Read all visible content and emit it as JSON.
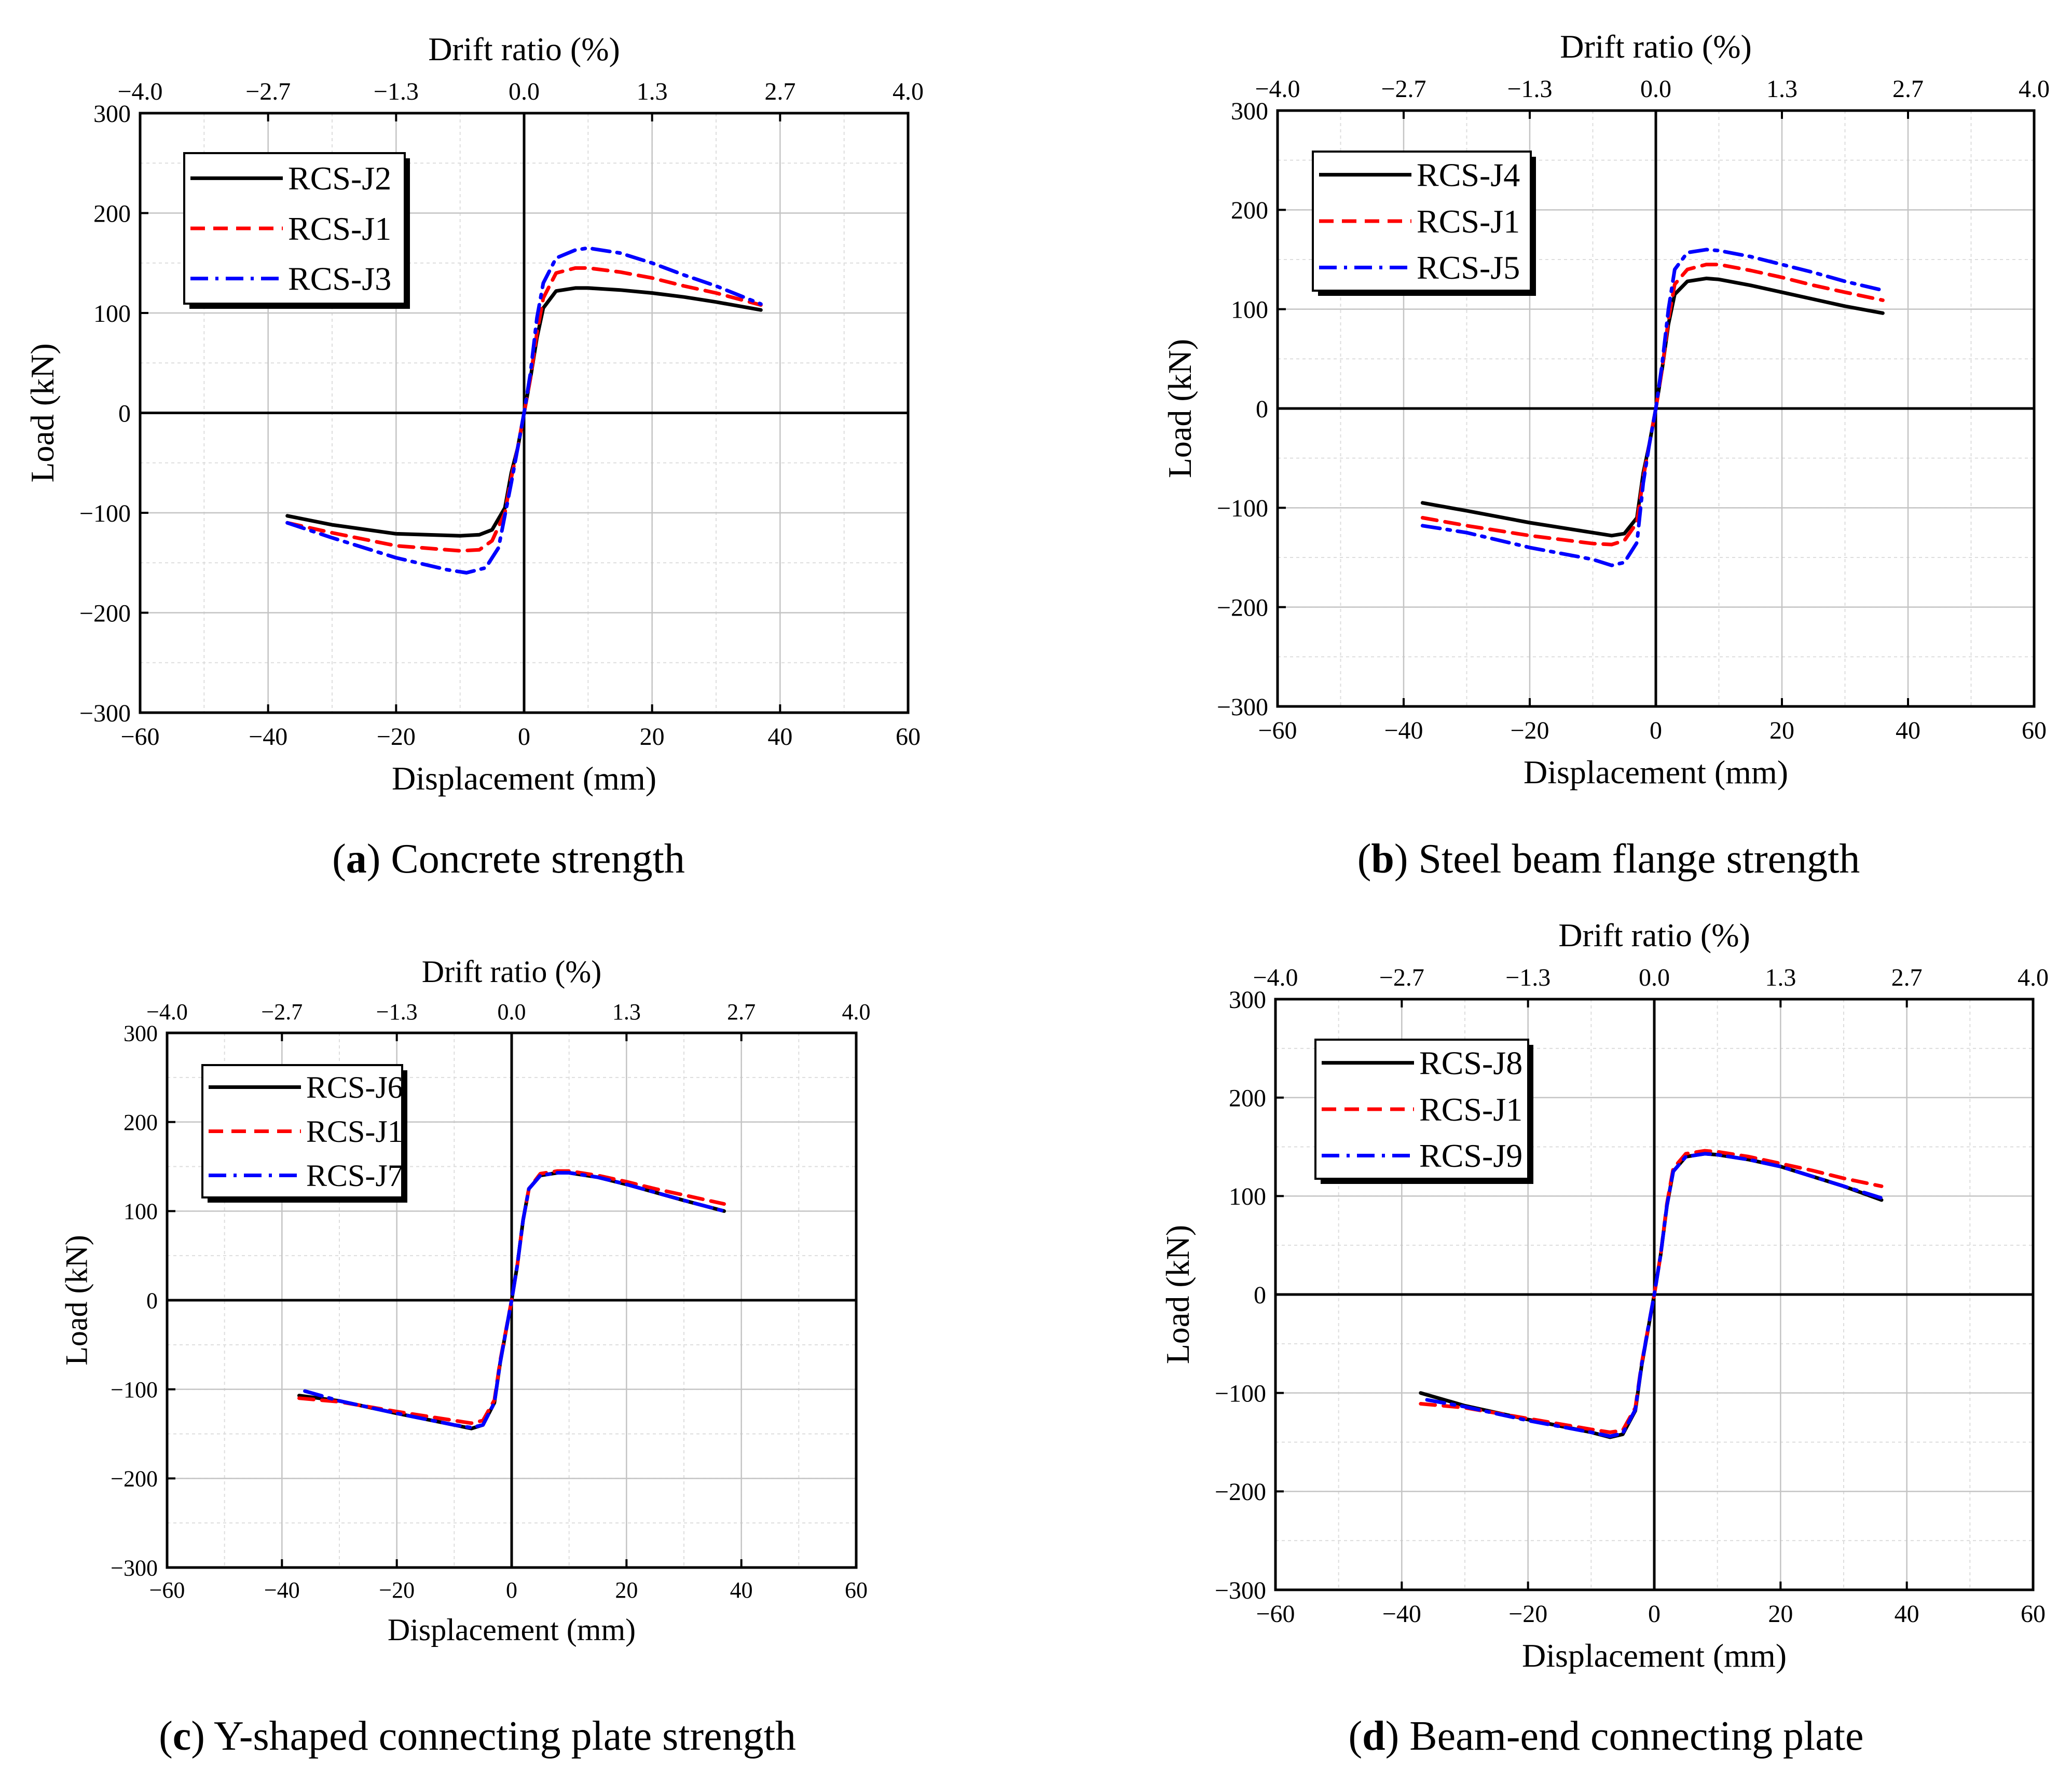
{
  "figure": {
    "panels": [
      {
        "id": "a",
        "caption": {
          "letter": "a",
          "text": " Concrete strength"
        },
        "top_axis_label": "Drift ratio (%)",
        "chart_data": {
          "type": "line",
          "xlabel": "Displacement (mm)",
          "ylabel": "Load (kN)",
          "x2label": "Drift ratio (%)",
          "xlim": [
            -60,
            60
          ],
          "ylim": [
            -300,
            300
          ],
          "xticks": [
            "−60",
            "−40",
            "−20",
            "0",
            "20",
            "40",
            "60"
          ],
          "xtick_values": [
            -60,
            -40,
            -20,
            0,
            20,
            40,
            60
          ],
          "yticks": [
            "−300",
            "−200",
            "−100",
            "0",
            "100",
            "200",
            "300"
          ],
          "ytick_values": [
            -300,
            -200,
            -100,
            0,
            100,
            200,
            300
          ],
          "x2ticks": [
            "−4.0",
            "−2.7",
            "−1.3",
            "0.0",
            "1.3",
            "2.7",
            "4.0"
          ],
          "grid": true,
          "legend_position": "top-left",
          "series": [
            {
              "name": "RCS-J2",
              "color": "#000000",
              "style": "solid",
              "x": [
                -37,
                -30,
                -20,
                -10,
                -7,
                -5,
                -3,
                -2,
                -1,
                0,
                1,
                2,
                3,
                5,
                8,
                10,
                15,
                20,
                25,
                30,
                37
              ],
              "y": [
                -103,
                -112,
                -121,
                -123,
                -122,
                -117,
                -95,
                -60,
                -35,
                0,
                35,
                75,
                105,
                122,
                125,
                125,
                123,
                120,
                116,
                111,
                103
              ]
            },
            {
              "name": "RCS-J1",
              "color": "#ff0000",
              "style": "dashed",
              "x": [
                -37,
                -30,
                -20,
                -10,
                -7,
                -5,
                -3,
                -2,
                -1,
                0,
                1,
                2,
                3,
                5,
                8,
                10,
                15,
                20,
                25,
                30,
                37
              ],
              "y": [
                -110,
                -120,
                -133,
                -138,
                -137,
                -128,
                -100,
                -65,
                -35,
                0,
                35,
                80,
                115,
                140,
                145,
                145,
                141,
                135,
                127,
                120,
                108
              ]
            },
            {
              "name": "RCS-J3",
              "color": "#0000ff",
              "style": "dashdot",
              "x": [
                -37,
                -30,
                -20,
                -12,
                -9,
                -6,
                -4,
                -2,
                -1,
                0,
                1,
                2,
                3,
                5,
                8,
                10,
                15,
                20,
                25,
                30,
                37
              ],
              "y": [
                -110,
                -125,
                -145,
                -157,
                -160,
                -155,
                -135,
                -70,
                -35,
                0,
                40,
                95,
                130,
                155,
                163,
                165,
                160,
                150,
                138,
                127,
                109
              ]
            }
          ]
        }
      },
      {
        "id": "b",
        "caption": {
          "letter": "b",
          "text": " Steel beam flange strength"
        },
        "top_axis_label": "Drift ratio (%)",
        "chart_data": {
          "type": "line",
          "xlabel": "Displacement (mm)",
          "ylabel": "Load (kN)",
          "x2label": "Drift ratio (%)",
          "xlim": [
            -60,
            60
          ],
          "ylim": [
            -300,
            300
          ],
          "xticks": [
            "−60",
            "−40",
            "−20",
            "0",
            "20",
            "40",
            "60"
          ],
          "xtick_values": [
            -60,
            -40,
            -20,
            0,
            20,
            40,
            60
          ],
          "yticks": [
            "−300",
            "−200",
            "−100",
            "0",
            "100",
            "200",
            "300"
          ],
          "ytick_values": [
            -300,
            -200,
            -100,
            0,
            100,
            200,
            300
          ],
          "x2ticks": [
            "−4.0",
            "−2.7",
            "−1.3",
            "0.0",
            "1.3",
            "2.7",
            "4.0"
          ],
          "grid": true,
          "legend_position": "top-left",
          "series": [
            {
              "name": "RCS-J4",
              "color": "#000000",
              "style": "solid",
              "x": [
                -37,
                -30,
                -20,
                -10,
                -7,
                -5,
                -3,
                -2,
                -1,
                0,
                1,
                2,
                3,
                5,
                8,
                10,
                15,
                20,
                25,
                30,
                36
              ],
              "y": [
                -95,
                -103,
                -115,
                -125,
                -128,
                -126,
                -110,
                -65,
                -35,
                0,
                40,
                85,
                115,
                128,
                131,
                130,
                124,
                117,
                110,
                103,
                96
              ]
            },
            {
              "name": "RCS-J1",
              "color": "#ff0000",
              "style": "dashed",
              "x": [
                -37,
                -30,
                -20,
                -10,
                -7,
                -5,
                -3,
                -2,
                -1,
                0,
                1,
                2,
                3,
                5,
                8,
                10,
                15,
                20,
                25,
                30,
                36
              ],
              "y": [
                -110,
                -118,
                -128,
                -136,
                -137,
                -133,
                -115,
                -70,
                -35,
                0,
                40,
                90,
                125,
                140,
                145,
                145,
                139,
                132,
                124,
                117,
                109
              ]
            },
            {
              "name": "RCS-J5",
              "color": "#0000ff",
              "style": "dashdot",
              "x": [
                -37,
                -30,
                -20,
                -10,
                -7,
                -5,
                -3,
                -2,
                -1,
                0,
                1,
                2,
                3,
                5,
                8,
                10,
                15,
                20,
                25,
                30,
                36
              ],
              "y": [
                -118,
                -125,
                -140,
                -152,
                -158,
                -155,
                -135,
                -75,
                -35,
                0,
                45,
                100,
                140,
                157,
                160,
                159,
                153,
                145,
                137,
                128,
                119
              ]
            }
          ]
        }
      },
      {
        "id": "c",
        "caption": {
          "letter": "c",
          "text": " Y-shaped connecting plate strength"
        },
        "top_axis_label": "Drift ratio (%)",
        "chart_data": {
          "type": "line",
          "xlabel": "Displacement (mm)",
          "ylabel": "Load (kN)",
          "x2label": "Drift ratio (%)",
          "xlim": [
            -60,
            60
          ],
          "ylim": [
            -300,
            300
          ],
          "xticks": [
            "−60",
            "−40",
            "−20",
            "0",
            "20",
            "40",
            "60"
          ],
          "xtick_values": [
            -60,
            -40,
            -20,
            0,
            20,
            40,
            60
          ],
          "yticks": [
            "−300",
            "−200",
            "−100",
            "0",
            "100",
            "200",
            "300"
          ],
          "ytick_values": [
            -300,
            -200,
            -100,
            0,
            100,
            200,
            300
          ],
          "x2ticks": [
            "−4.0",
            "−2.7",
            "−1.3",
            "0.0",
            "1.3",
            "2.7",
            "4.0"
          ],
          "grid": true,
          "legend_position": "top-left",
          "series": [
            {
              "name": "RCS-J6",
              "color": "#000000",
              "style": "solid",
              "x": [
                -37,
                -30,
                -20,
                -10,
                -7,
                -5,
                -3,
                -2,
                -1,
                0,
                1,
                2,
                3,
                5,
                8,
                10,
                15,
                20,
                25,
                30,
                37
              ],
              "y": [
                -107,
                -113,
                -127,
                -140,
                -144,
                -140,
                -115,
                -70,
                -35,
                0,
                40,
                90,
                125,
                140,
                143,
                143,
                138,
                130,
                121,
                112,
                100
              ]
            },
            {
              "name": "RCS-J1",
              "color": "#ff0000",
              "style": "dashed",
              "x": [
                -37,
                -30,
                -20,
                -10,
                -7,
                -5,
                -3,
                -2,
                -1,
                0,
                1,
                2,
                3,
                5,
                8,
                10,
                15,
                20,
                25,
                30,
                37
              ],
              "y": [
                -110,
                -114,
                -125,
                -135,
                -138,
                -135,
                -112,
                -68,
                -34,
                0,
                40,
                90,
                125,
                142,
                145,
                145,
                140,
                133,
                125,
                118,
                108
              ]
            },
            {
              "name": "RCS-J7",
              "color": "#0000ff",
              "style": "dashdot",
              "x": [
                -36,
                -30,
                -20,
                -10,
                -7,
                -5,
                -3,
                -2,
                -1,
                0,
                1,
                2,
                3,
                5,
                8,
                10,
                15,
                20,
                25,
                30,
                37
              ],
              "y": [
                -102,
                -113,
                -127,
                -140,
                -143,
                -140,
                -115,
                -70,
                -35,
                0,
                40,
                90,
                125,
                140,
                143,
                143,
                138,
                130,
                121,
                112,
                100
              ]
            }
          ]
        }
      },
      {
        "id": "d",
        "caption": {
          "letter": "d",
          "text": " Beam-end connecting plate"
        },
        "top_axis_label": "Drift ratio (%)",
        "chart_data": {
          "type": "line",
          "xlabel": "Displacement (mm)",
          "ylabel": "Load (kN)",
          "x2label": "Drift ratio (%)",
          "xlim": [
            -60,
            60
          ],
          "ylim": [
            -300,
            300
          ],
          "xticks": [
            "−60",
            "−40",
            "−20",
            "0",
            "20",
            "40",
            "60"
          ],
          "xtick_values": [
            -60,
            -40,
            -20,
            0,
            20,
            40,
            60
          ],
          "yticks": [
            "−300",
            "−200",
            "−100",
            "0",
            "100",
            "200",
            "300"
          ],
          "ytick_values": [
            -300,
            -200,
            -100,
            0,
            100,
            200,
            300
          ],
          "x2ticks": [
            "−4.0",
            "−2.7",
            "−1.3",
            "0.0",
            "1.3",
            "2.7",
            "4.0"
          ],
          "grid": true,
          "legend_position": "top-left",
          "series": [
            {
              "name": "RCS-J8",
              "color": "#000000",
              "style": "solid",
              "x": [
                -37,
                -30,
                -20,
                -10,
                -7,
                -5,
                -3,
                -2,
                -1,
                0,
                1,
                2,
                3,
                5,
                8,
                10,
                15,
                20,
                25,
                30,
                36
              ],
              "y": [
                -100,
                -113,
                -127,
                -140,
                -145,
                -142,
                -118,
                -72,
                -36,
                0,
                40,
                90,
                125,
                140,
                143,
                142,
                137,
                130,
                120,
                110,
                96
              ]
            },
            {
              "name": "RCS-J1",
              "color": "#ff0000",
              "style": "dashed",
              "x": [
                -37,
                -30,
                -20,
                -10,
                -7,
                -5,
                -3,
                -2,
                -1,
                0,
                1,
                2,
                3,
                5,
                8,
                10,
                15,
                20,
                25,
                30,
                36
              ],
              "y": [
                -111,
                -115,
                -126,
                -137,
                -140,
                -138,
                -115,
                -70,
                -35,
                0,
                40,
                92,
                128,
                143,
                146,
                145,
                140,
                133,
                126,
                118,
                110
              ]
            },
            {
              "name": "RCS-J9",
              "color": "#0000ff",
              "style": "dashdot",
              "x": [
                -36,
                -30,
                -20,
                -10,
                -7,
                -5,
                -3,
                -2,
                -1,
                0,
                1,
                2,
                3,
                5,
                8,
                10,
                15,
                20,
                25,
                30,
                36
              ],
              "y": [
                -107,
                -114,
                -128,
                -140,
                -144,
                -141,
                -117,
                -71,
                -35,
                0,
                40,
                90,
                125,
                140,
                143,
                142,
                137,
                130,
                120,
                110,
                98
              ]
            }
          ]
        }
      }
    ]
  }
}
